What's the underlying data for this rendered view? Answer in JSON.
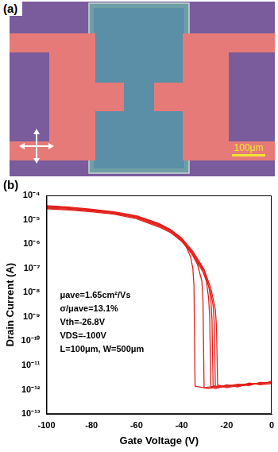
{
  "panel_a": {
    "label": "(a)",
    "scale_bar_label": "100μm"
  },
  "panel_b_label": "(b)",
  "chart_data": {
    "type": "line",
    "x_label": "Gate Voltage (V)",
    "y_label": "Drain Current (A)",
    "log": "y",
    "grid": false,
    "color": "#e3211c",
    "marker": "none",
    "line_style": "solid",
    "xlim": [
      -100,
      0
    ],
    "xticks": [
      -100,
      -80,
      -60,
      -40,
      -20,
      0
    ],
    "ylim": [
      1e-13,
      0.0001
    ],
    "yticks": [
      {
        "value": 1e-13,
        "label": "10⁻¹³"
      },
      {
        "value": 1e-12,
        "label": "10⁻¹²"
      },
      {
        "value": 1e-11,
        "label": "10⁻¹¹"
      },
      {
        "value": 1e-10,
        "label": "10⁻¹⁰"
      },
      {
        "value": 1e-09,
        "label": "10⁻⁹"
      },
      {
        "value": 1e-08,
        "label": "10⁻⁸"
      },
      {
        "value": 1e-07,
        "label": "10⁻⁷"
      },
      {
        "value": 1e-06,
        "label": "10⁻⁶"
      },
      {
        "value": 1e-05,
        "label": "10⁻⁵"
      },
      {
        "value": 0.0001,
        "label": "10⁻⁴"
      }
    ],
    "annotations": [
      "μave=1.65cm²/Vs",
      "σ/μave=13.1%",
      "Vth=-26.8V",
      "VDS=-100V",
      "L=100μm, W=500μm"
    ],
    "series": [
      {
        "x": [
          -100,
          -90,
          -80,
          -70,
          -60,
          -50,
          -45,
          -40,
          -38,
          -36,
          -35,
          -34.5,
          -34,
          -30,
          -25,
          -20,
          -15,
          -10,
          -5,
          0
        ],
        "values": [
          3.2e-05,
          2.9e-05,
          2.4e-05,
          1.9e-05,
          1.3e-05,
          6e-06,
          3.5e-06,
          1.5e-06,
          8e-07,
          3e-07,
          1e-07,
          2e-08,
          1.4e-12,
          1.2e-12,
          1.4e-12,
          1.3e-12,
          1.6e-12,
          1.7e-12,
          1.9e-12,
          2e-12
        ]
      },
      {
        "x": [
          -100,
          -90,
          -80,
          -70,
          -60,
          -50,
          -45,
          -40,
          -36,
          -33,
          -31,
          -30.5,
          -30,
          -28,
          -25,
          -20,
          -15,
          -10,
          -5,
          0
        ],
        "values": [
          3.6e-05,
          3.1e-05,
          2.6e-05,
          2e-05,
          1.4e-05,
          6.5e-06,
          3.8e-06,
          1.7e-06,
          5e-07,
          1.5e-07,
          3e-08,
          5e-09,
          1.2e-12,
          1.1e-12,
          1.3e-12,
          1.5e-12,
          1.4e-12,
          1.7e-12,
          1.8e-12,
          2.1e-12
        ]
      },
      {
        "x": [
          -100,
          -90,
          -80,
          -70,
          -60,
          -50,
          -45,
          -40,
          -35,
          -31,
          -29,
          -28,
          -27.5,
          -27,
          -25,
          -20,
          -15,
          -10,
          -5,
          0
        ],
        "values": [
          3e-05,
          2.7e-05,
          2.3e-05,
          1.8e-05,
          1.2e-05,
          5.5e-06,
          3.2e-06,
          1.4e-06,
          4e-07,
          1e-07,
          3e-08,
          6e-09,
          1e-09,
          1.3e-12,
          1.1e-12,
          1.6e-12,
          1.3e-12,
          1.9e-12,
          1.6e-12,
          1.8e-12
        ]
      },
      {
        "x": [
          -100,
          -90,
          -80,
          -70,
          -60,
          -50,
          -45,
          -40,
          -35,
          -30,
          -28,
          -27,
          -26.5,
          -26,
          -24,
          -20,
          -15,
          -10,
          -5,
          0
        ],
        "values": [
          3.4e-05,
          3e-05,
          2.5e-05,
          2e-05,
          1.3e-05,
          6.2e-06,
          3.6e-06,
          1.6e-06,
          4.5e-07,
          8e-08,
          2e-08,
          5e-09,
          8e-10,
          1.5e-12,
          1.2e-12,
          1.4e-12,
          1.7e-12,
          1.5e-12,
          2e-12,
          1.9e-12
        ]
      },
      {
        "x": [
          -100,
          -90,
          -80,
          -70,
          -60,
          -50,
          -45,
          -40,
          -35,
          -30,
          -27,
          -26,
          -25.5,
          -25,
          -23,
          -20,
          -15,
          -10,
          -5,
          0
        ],
        "values": [
          2.8e-05,
          2.5e-05,
          2.1e-05,
          1.7e-05,
          1.1e-05,
          5e-06,
          3e-06,
          1.3e-06,
          3.5e-07,
          6e-08,
          1e-08,
          3e-09,
          6e-10,
          1.3e-12,
          1.5e-12,
          1.2e-12,
          1.5e-12,
          1.8e-12,
          1.7e-12,
          2.2e-12
        ]
      },
      {
        "x": [
          -100,
          -90,
          -80,
          -70,
          -60,
          -50,
          -45,
          -40,
          -35,
          -30,
          -27,
          -25,
          -24.5,
          -24,
          -22,
          -20,
          -15,
          -10,
          -5,
          0
        ],
        "values": [
          3.8e-05,
          3.3e-05,
          2.7e-05,
          2.1e-05,
          1.45e-05,
          7e-06,
          4e-06,
          1.8e-06,
          5e-07,
          9e-08,
          1.5e-08,
          2e-09,
          4e-10,
          1.6e-12,
          1.3e-12,
          1.5e-12,
          1.4e-12,
          1.6e-12,
          1.9e-12,
          2e-12
        ]
      }
    ]
  }
}
